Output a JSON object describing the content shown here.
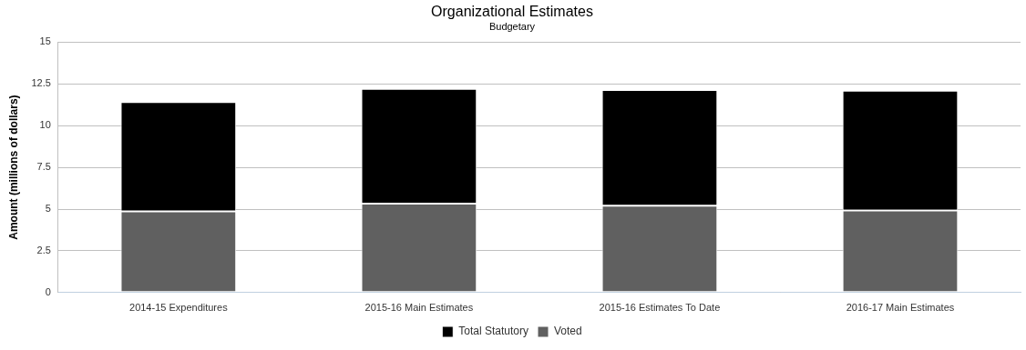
{
  "chart_data": {
    "type": "bar",
    "title": "Organizational Estimates",
    "subtitle": "Budgetary",
    "y_label": "Amount (millions of dollars)",
    "categories": [
      "2014-15 Expenditures",
      "2015-16 Main Estimates",
      "2015-16 Estimates To Date",
      "2016-17 Main Estimates"
    ],
    "series": [
      {
        "name": "Total Statutory",
        "color": "#000000",
        "values": [
          6.55,
          6.88,
          6.94,
          7.17
        ]
      },
      {
        "name": "Voted",
        "color": "#606060",
        "values": [
          4.87,
          5.32,
          5.2,
          4.92
        ]
      }
    ],
    "ylim": [
      0,
      15
    ],
    "yticks": [
      0,
      2.5,
      5,
      7.5,
      10,
      12.5,
      15
    ],
    "stacked": true,
    "grid": true,
    "legend": "bottom"
  }
}
